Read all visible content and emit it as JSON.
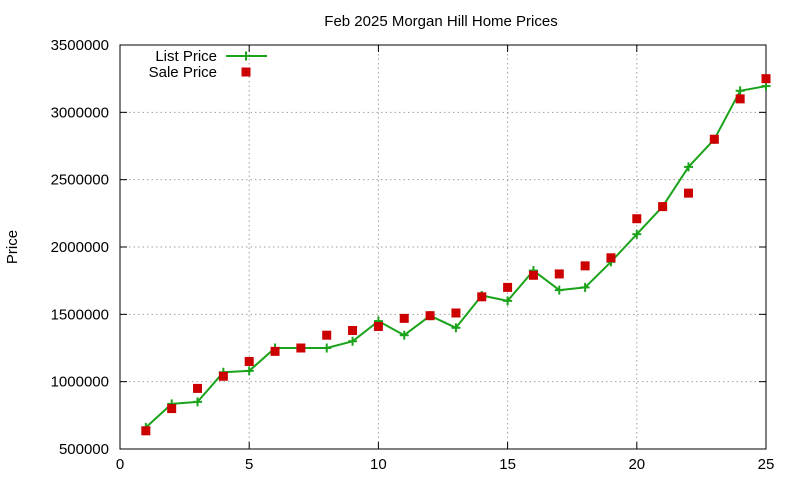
{
  "chart_data": {
    "type": "line",
    "title": "Feb 2025 Morgan Hill Home Prices",
    "xlabel": "",
    "ylabel": "Price",
    "xlim": [
      0,
      25
    ],
    "ylim": [
      500000,
      3500000
    ],
    "x_ticks": [
      0,
      5,
      10,
      15,
      20,
      25
    ],
    "y_ticks": [
      500000,
      1000000,
      1500000,
      2000000,
      2500000,
      3000000,
      3500000
    ],
    "grid": true,
    "legend_position": "top-left",
    "series": [
      {
        "name": "List Price",
        "style": "line-with-plus-markers",
        "color": "#1aa31a",
        "points": [
          [
            1,
            660000
          ],
          [
            2,
            835000
          ],
          [
            3,
            850000
          ],
          [
            4,
            1070000
          ],
          [
            5,
            1080000
          ],
          [
            6,
            1250000
          ],
          [
            7,
            1250000
          ],
          [
            8,
            1250000
          ],
          [
            9,
            1300000
          ],
          [
            10,
            1450000
          ],
          [
            11,
            1345000
          ],
          [
            12,
            1490000
          ],
          [
            13,
            1400000
          ],
          [
            14,
            1640000
          ],
          [
            15,
            1600000
          ],
          [
            16,
            1825000
          ],
          [
            17,
            1680000
          ],
          [
            18,
            1700000
          ],
          [
            19,
            1890000
          ],
          [
            20,
            2095000
          ],
          [
            21,
            2300000
          ],
          [
            22,
            2595000
          ],
          [
            23,
            2800000
          ],
          [
            24,
            3160000
          ],
          [
            25,
            3195000
          ]
        ]
      },
      {
        "name": "Sale Price",
        "style": "square-markers",
        "color": "#cc0000",
        "points": [
          [
            1,
            635000
          ],
          [
            2,
            800000
          ],
          [
            3,
            950000
          ],
          [
            4,
            1040000
          ],
          [
            5,
            1150000
          ],
          [
            6,
            1225000
          ],
          [
            7,
            1250000
          ],
          [
            8,
            1345000
          ],
          [
            9,
            1380000
          ],
          [
            10,
            1410000
          ],
          [
            11,
            1470000
          ],
          [
            12,
            1490000
          ],
          [
            13,
            1510000
          ],
          [
            14,
            1630000
          ],
          [
            15,
            1700000
          ],
          [
            16,
            1790000
          ],
          [
            17,
            1800000
          ],
          [
            18,
            1860000
          ],
          [
            19,
            1920000
          ],
          [
            20,
            2210000
          ],
          [
            21,
            2300000
          ],
          [
            22,
            2400000
          ],
          [
            23,
            2800000
          ],
          [
            24,
            3100000
          ],
          [
            25,
            3250000
          ]
        ]
      }
    ]
  }
}
